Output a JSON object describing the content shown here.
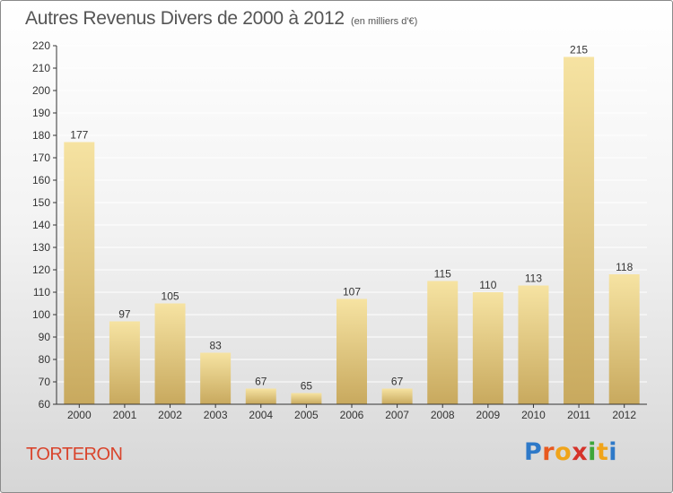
{
  "title": "Autres Revenus Divers de 2000 à 2012",
  "subtitle": "(en milliers d'€)",
  "commune": "TORTERON",
  "logo": {
    "letters": [
      "P",
      "r",
      "o",
      "x",
      "i",
      "t",
      "i"
    ],
    "colors": [
      "#2e79c8",
      "#e8591f",
      "#f0a41a",
      "#d5332a",
      "#3da63a",
      "#f0a41a",
      "#2e79c8"
    ]
  },
  "colors": {
    "bar_light": "#f6e3a2",
    "bar_dark": "#c8a95e",
    "axis": "#333333",
    "grid": "#ffffff",
    "text": "#333333",
    "commune": "#d9442c"
  },
  "chart_data": {
    "type": "bar",
    "categories": [
      "2000",
      "2001",
      "2002",
      "2003",
      "2004",
      "2005",
      "2006",
      "2007",
      "2008",
      "2009",
      "2010",
      "2011",
      "2012"
    ],
    "values": [
      177,
      97,
      105,
      83,
      67,
      65,
      107,
      67,
      115,
      110,
      113,
      215,
      118
    ],
    "data_labels": [
      "177",
      "97",
      "105",
      "83",
      "67",
      "65",
      "107",
      "67",
      "115",
      "110",
      "113",
      "215",
      "118"
    ],
    "ylim": [
      60,
      220
    ],
    "yticks": [
      60,
      70,
      80,
      90,
      100,
      110,
      120,
      130,
      140,
      150,
      160,
      170,
      180,
      190,
      200,
      210,
      220
    ],
    "grid": true
  }
}
